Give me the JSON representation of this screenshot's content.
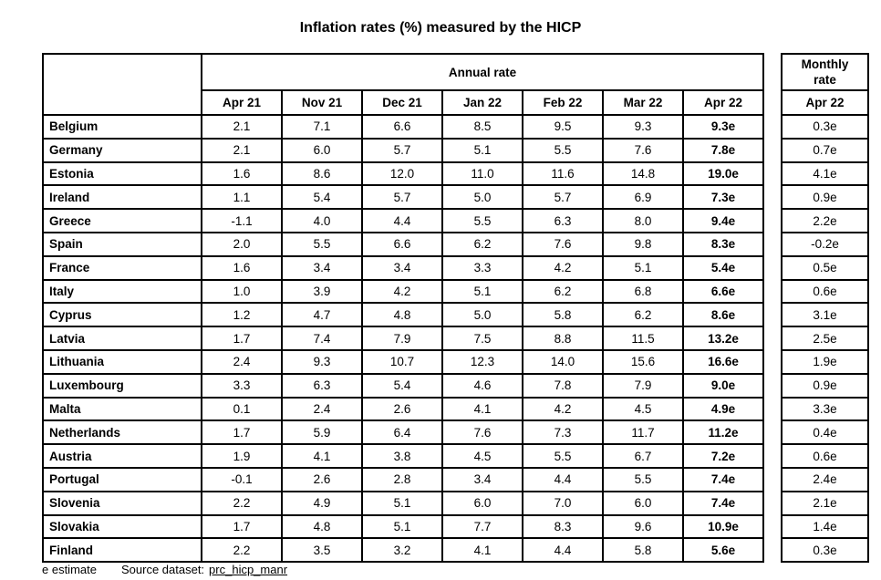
{
  "title": "Inflation rates (%) measured by the HICP",
  "annual": {
    "group_header": "Annual rate",
    "months": [
      "Apr 21",
      "Nov 21",
      "Dec 21",
      "Jan 22",
      "Feb 22",
      "Mar 22",
      "Apr 22"
    ]
  },
  "monthly": {
    "group_header": "Monthly rate",
    "month": "Apr 22"
  },
  "rows": [
    {
      "country": "Belgium",
      "values": [
        "2.1",
        "7.1",
        "6.6",
        "8.5",
        "9.5",
        "9.3",
        "9.3e"
      ],
      "monthly": "0.3e"
    },
    {
      "country": "Germany",
      "values": [
        "2.1",
        "6.0",
        "5.7",
        "5.1",
        "5.5",
        "7.6",
        "7.8e"
      ],
      "monthly": "0.7e"
    },
    {
      "country": "Estonia",
      "values": [
        "1.6",
        "8.6",
        "12.0",
        "11.0",
        "11.6",
        "14.8",
        "19.0e"
      ],
      "monthly": "4.1e"
    },
    {
      "country": "Ireland",
      "values": [
        "1.1",
        "5.4",
        "5.7",
        "5.0",
        "5.7",
        "6.9",
        "7.3e"
      ],
      "monthly": "0.9e"
    },
    {
      "country": "Greece",
      "values": [
        "-1.1",
        "4.0",
        "4.4",
        "5.5",
        "6.3",
        "8.0",
        "9.4e"
      ],
      "monthly": "2.2e"
    },
    {
      "country": "Spain",
      "values": [
        "2.0",
        "5.5",
        "6.6",
        "6.2",
        "7.6",
        "9.8",
        "8.3e"
      ],
      "monthly": "-0.2e"
    },
    {
      "country": "France",
      "values": [
        "1.6",
        "3.4",
        "3.4",
        "3.3",
        "4.2",
        "5.1",
        "5.4e"
      ],
      "monthly": "0.5e"
    },
    {
      "country": "Italy",
      "values": [
        "1.0",
        "3.9",
        "4.2",
        "5.1",
        "6.2",
        "6.8",
        "6.6e"
      ],
      "monthly": "0.6e"
    },
    {
      "country": "Cyprus",
      "values": [
        "1.2",
        "4.7",
        "4.8",
        "5.0",
        "5.8",
        "6.2",
        "8.6e"
      ],
      "monthly": "3.1e"
    },
    {
      "country": "Latvia",
      "values": [
        "1.7",
        "7.4",
        "7.9",
        "7.5",
        "8.8",
        "11.5",
        "13.2e"
      ],
      "monthly": "2.5e"
    },
    {
      "country": "Lithuania",
      "values": [
        "2.4",
        "9.3",
        "10.7",
        "12.3",
        "14.0",
        "15.6",
        "16.6e"
      ],
      "monthly": "1.9e"
    },
    {
      "country": "Luxembourg",
      "values": [
        "3.3",
        "6.3",
        "5.4",
        "4.6",
        "7.8",
        "7.9",
        "9.0e"
      ],
      "monthly": "0.9e"
    },
    {
      "country": "Malta",
      "values": [
        "0.1",
        "2.4",
        "2.6",
        "4.1",
        "4.2",
        "4.5",
        "4.9e"
      ],
      "monthly": "3.3e"
    },
    {
      "country": "Netherlands",
      "values": [
        "1.7",
        "5.9",
        "6.4",
        "7.6",
        "7.3",
        "11.7",
        "11.2e"
      ],
      "monthly": "0.4e"
    },
    {
      "country": "Austria",
      "values": [
        "1.9",
        "4.1",
        "3.8",
        "4.5",
        "5.5",
        "6.7",
        "7.2e"
      ],
      "monthly": "0.6e"
    },
    {
      "country": "Portugal",
      "values": [
        "-0.1",
        "2.6",
        "2.8",
        "3.4",
        "4.4",
        "5.5",
        "7.4e"
      ],
      "monthly": "2.4e"
    },
    {
      "country": "Slovenia",
      "values": [
        "2.2",
        "4.9",
        "5.1",
        "6.0",
        "7.0",
        "6.0",
        "7.4e"
      ],
      "monthly": "2.1e"
    },
    {
      "country": "Slovakia",
      "values": [
        "1.7",
        "4.8",
        "5.1",
        "7.7",
        "8.3",
        "9.6",
        "10.9e"
      ],
      "monthly": "1.4e"
    },
    {
      "country": "Finland",
      "values": [
        "2.2",
        "3.5",
        "3.2",
        "4.1",
        "4.4",
        "5.8",
        "5.6e"
      ],
      "monthly": "0.3e"
    }
  ],
  "footer": {
    "note": "e estimate",
    "source_label": "Source dataset:",
    "source_link": "prc_hicp_manr"
  }
}
